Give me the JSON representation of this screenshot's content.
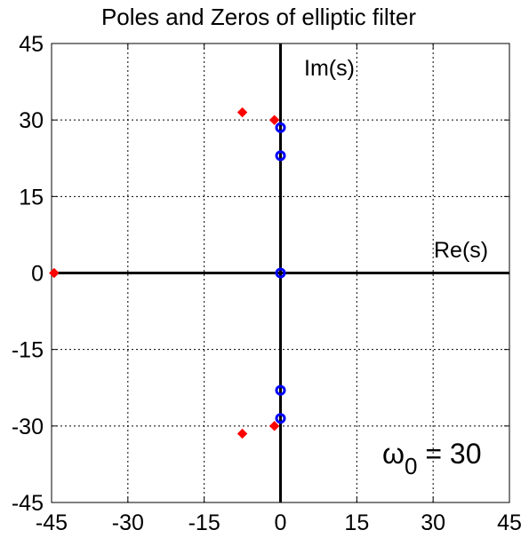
{
  "chart_data": {
    "type": "scatter",
    "title": "Poles and Zeros of elliptic filter",
    "xlim": [
      -45,
      45
    ],
    "ylim": [
      -45,
      45
    ],
    "xticks": [
      -45,
      -30,
      -15,
      0,
      15,
      30,
      45
    ],
    "yticks": [
      -45,
      -30,
      -15,
      0,
      15,
      30,
      45
    ],
    "xtick_labels": [
      "-45",
      "-30",
      "-15",
      "0",
      "15",
      "30",
      "45"
    ],
    "ytick_labels": [
      "-45",
      "-30",
      "-15",
      "0",
      "15",
      "30",
      "45"
    ],
    "grid": true,
    "axis_labels": {
      "real": "Re(s)",
      "imag": "Im(s)"
    },
    "annotation": {
      "symbol": "ω",
      "subscript": "0",
      "text": " = 30"
    },
    "series": [
      {
        "marker": "diamond",
        "color": "#ff0000",
        "points": [
          {
            "x": -44.5,
            "y": 0
          },
          {
            "x": -7.5,
            "y": 31.5
          },
          {
            "x": -7.5,
            "y": -31.5
          },
          {
            "x": -1.2,
            "y": 30
          },
          {
            "x": -1.2,
            "y": -30
          }
        ]
      },
      {
        "marker": "circle",
        "color": "#0000ff",
        "points": [
          {
            "x": 0,
            "y": 28.5
          },
          {
            "x": 0,
            "y": 23
          },
          {
            "x": 0,
            "y": 0
          },
          {
            "x": 0,
            "y": -23
          },
          {
            "x": 0,
            "y": -28.5
          }
        ]
      }
    ]
  }
}
